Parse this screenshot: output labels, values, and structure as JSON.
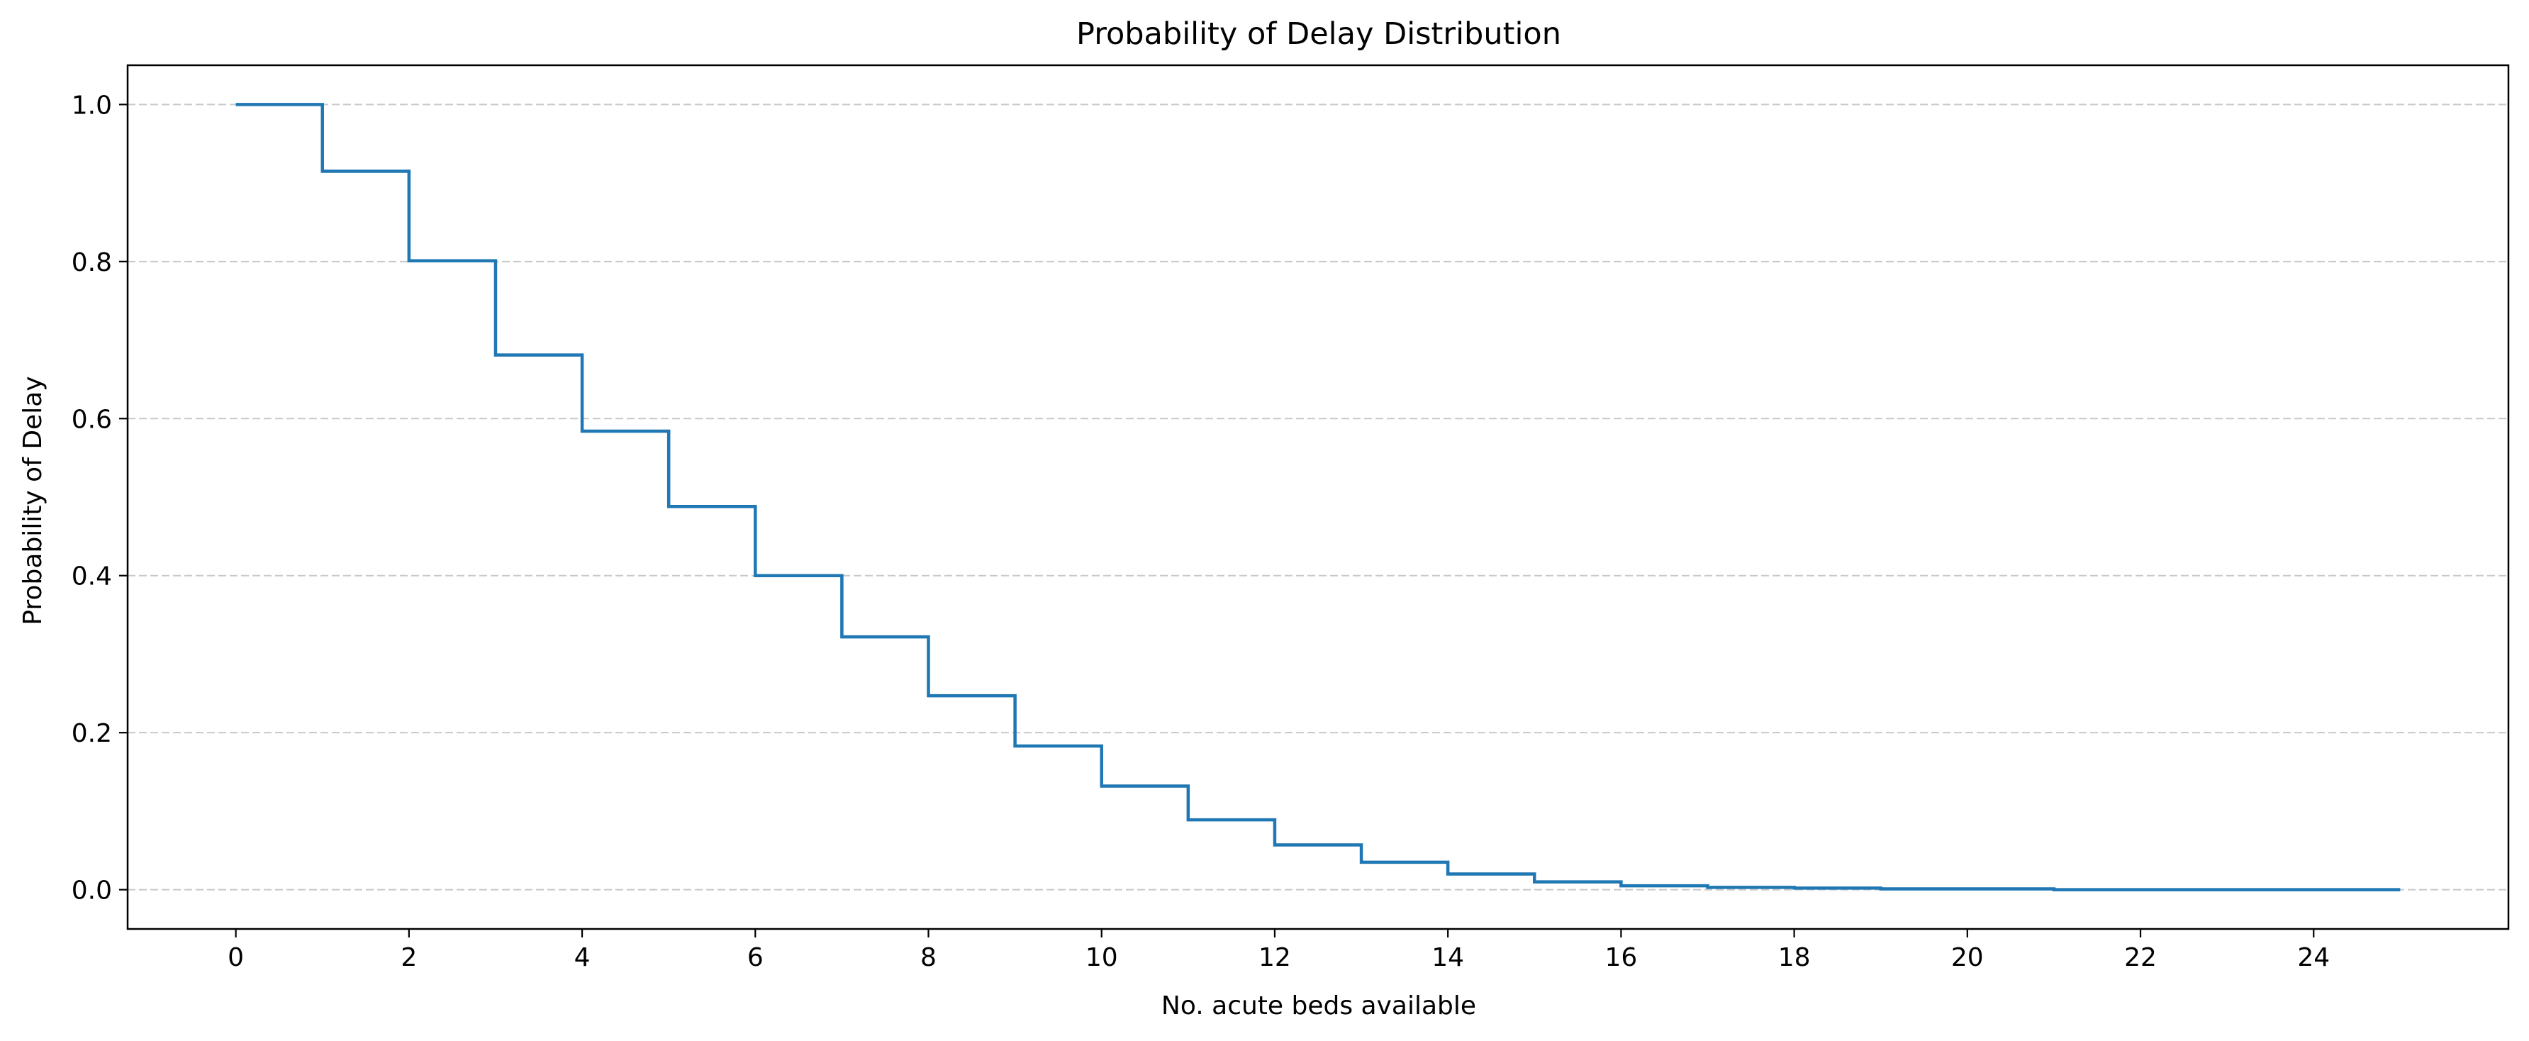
{
  "chart_data": {
    "type": "line",
    "step": "post",
    "title": "Probability of Delay Distribution",
    "xlabel": "No. acute beds available",
    "ylabel": "Probability of Delay",
    "xlim": [
      -1.25,
      26.25
    ],
    "ylim": [
      -0.05,
      1.05
    ],
    "xticks": [
      0,
      2,
      4,
      6,
      8,
      10,
      12,
      14,
      16,
      18,
      20,
      22,
      24
    ],
    "yticks": [
      0.0,
      0.2,
      0.4,
      0.6,
      0.8,
      1.0
    ],
    "ytick_labels": [
      "0.0",
      "0.2",
      "0.4",
      "0.6",
      "0.8",
      "1.0"
    ],
    "grid": "y-dashed",
    "series": [
      {
        "color": "#1f77b4",
        "x": [
          0,
          1,
          2,
          3,
          4,
          5,
          6,
          7,
          8,
          9,
          10,
          11,
          12,
          13,
          14,
          15,
          16,
          17,
          18,
          19,
          20,
          21,
          22,
          23,
          24,
          25
        ],
        "y": [
          1.0,
          0.915,
          0.801,
          0.681,
          0.584,
          0.488,
          0.4,
          0.322,
          0.247,
          0.183,
          0.132,
          0.089,
          0.057,
          0.035,
          0.02,
          0.01,
          0.005,
          0.003,
          0.002,
          0.001,
          0.001,
          0.0,
          0.0,
          0.0,
          0.0,
          0.0
        ]
      }
    ]
  }
}
